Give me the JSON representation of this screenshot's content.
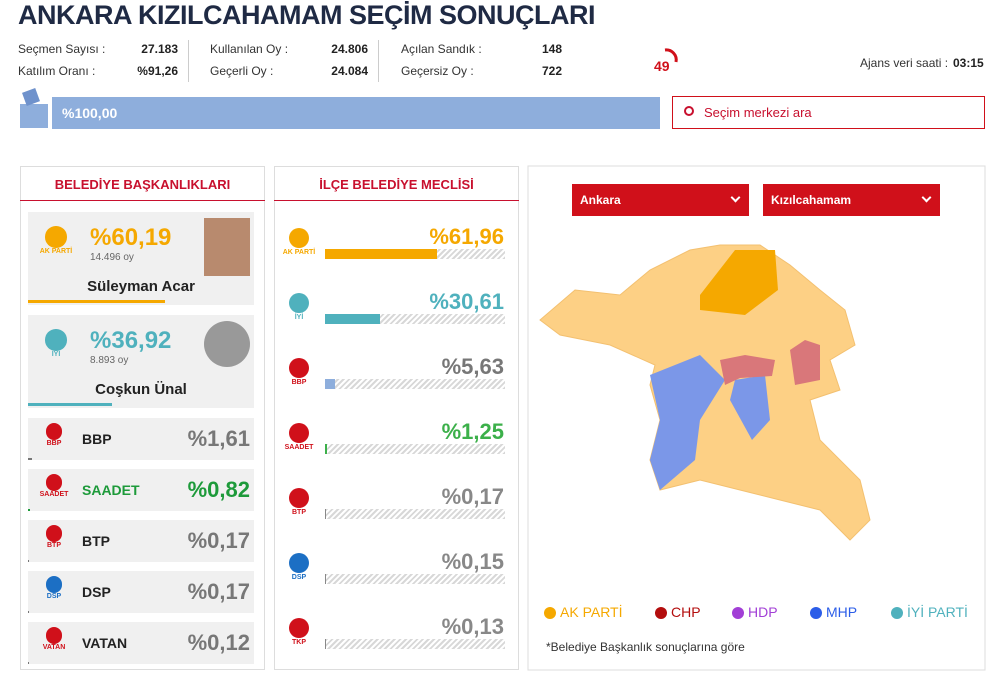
{
  "header": {
    "title": "ANKARA KIZILCAHAMAM SEÇİM SONUÇLARI",
    "stats": [
      [
        {
          "label": "Seçmen Sayısı :",
          "value": "27.183"
        },
        {
          "label": "Katılım Oranı :",
          "value": "%91,26"
        }
      ],
      [
        {
          "label": "Kullanılan Oy :",
          "value": "24.806"
        },
        {
          "label": "Geçerli Oy :",
          "value": "24.084"
        }
      ],
      [
        {
          "label": "Açılan Sandık :",
          "value": "148"
        },
        {
          "label": "Geçersiz Oy :",
          "value": "722"
        }
      ]
    ],
    "counter": "49",
    "time_label": "Ajans veri saati :",
    "time": "03:15",
    "progress": {
      "value": 100,
      "label": "%100,00"
    },
    "search_placeholder": "Seçim merkezi ara"
  },
  "mayor": {
    "title": "BELEDİYE BAŞKANLIKLARI",
    "candidates": [
      {
        "logo": "AK PARTİ",
        "logo_color": "#f5a800",
        "name": "Süleyman Acar",
        "votes": "14.496 oy",
        "share": {
          "value": 60.19,
          "label": "%60,19"
        },
        "color": "#f5a800"
      },
      {
        "logo": "İYİ",
        "logo_color": "#4fb1bd",
        "name": "Coşkun Ünal",
        "votes": "8.893 oy",
        "share": {
          "value": 36.92,
          "label": "%36,92"
        },
        "color": "#4fb1bd"
      }
    ],
    "others": [
      {
        "logo": "BBP",
        "logo_color": "#d0101a",
        "name": "BBP",
        "share": {
          "value": 1.61,
          "label": "%1,61"
        },
        "color": "#777777"
      },
      {
        "logo": "SAADET",
        "logo_color": "#d0101a",
        "name": "SAADET",
        "share": {
          "value": 0.82,
          "label": "%0,82"
        },
        "color": "#1d9a3a"
      },
      {
        "logo": "BTP",
        "logo_color": "#d0101a",
        "name": "BTP",
        "share": {
          "value": 0.17,
          "label": "%0,17"
        },
        "color": "#777777"
      },
      {
        "logo": "DSP",
        "logo_color": "#1c6fc4",
        "name": "DSP",
        "share": {
          "value": 0.17,
          "label": "%0,17"
        },
        "color": "#777777"
      },
      {
        "logo": "VATAN",
        "logo_color": "#d0101a",
        "name": "VATAN",
        "share": {
          "value": 0.12,
          "label": "%0,12"
        },
        "color": "#777777"
      }
    ]
  },
  "council": {
    "title": "İLÇE BELEDİYE MECLİSİ",
    "parties": [
      {
        "logo": "AK PARTİ",
        "logo_color": "#f5a800",
        "share": {
          "value": 61.96,
          "label": "%61,96"
        },
        "color": "#f5a800"
      },
      {
        "logo": "İYİ",
        "logo_color": "#4fb1bd",
        "share": {
          "value": 30.61,
          "label": "%30,61"
        },
        "color": "#4fb1bd"
      },
      {
        "logo": "BBP",
        "logo_color": "#d0101a",
        "share": {
          "value": 5.63,
          "label": "%5,63"
        },
        "color": "#8eaedc"
      },
      {
        "logo": "SAADET",
        "logo_color": "#d0101a",
        "share": {
          "value": 1.25,
          "label": "%1,25"
        },
        "color": "#3cb04a"
      },
      {
        "logo": "BTP",
        "logo_color": "#d0101a",
        "share": {
          "value": 0.17,
          "label": "%0,17"
        },
        "color": "#888888"
      },
      {
        "logo": "DSP",
        "logo_color": "#1c6fc4",
        "share": {
          "value": 0.15,
          "label": "%0,15"
        },
        "color": "#888888"
      },
      {
        "logo": "TKP",
        "logo_color": "#d0101a",
        "share": {
          "value": 0.13,
          "label": "%0,13"
        },
        "color": "#888888"
      }
    ]
  },
  "map": {
    "selects": [
      "Ankara",
      "Kızılcahamam"
    ],
    "legend": [
      {
        "name": "AK PARTİ",
        "color": "#f5a800"
      },
      {
        "name": "CHP",
        "color": "#b30d0d"
      },
      {
        "name": "HDP",
        "color": "#a23fd6"
      },
      {
        "name": "MHP",
        "color": "#2b5de8"
      },
      {
        "name": "İYİ PARTİ",
        "color": "#4fb1bd"
      }
    ],
    "note": "*Belediye Başkanlık sonuçlarına göre"
  }
}
